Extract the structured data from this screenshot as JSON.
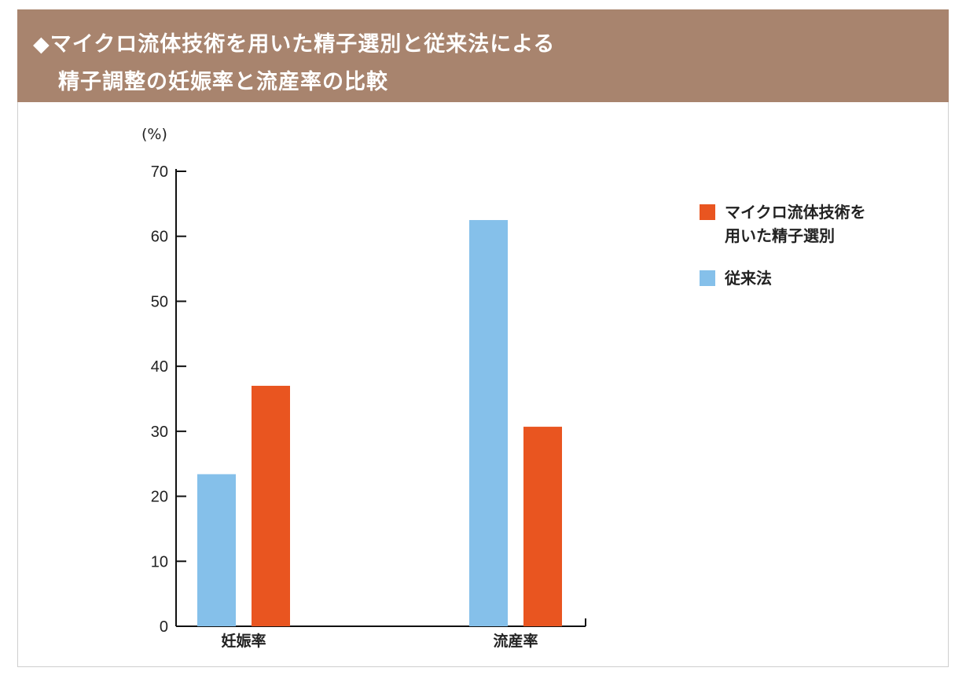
{
  "header": {
    "title_line1": "◆マイクロ流体技術を用いた精子選別と従来法による",
    "title_line2": "精子調整の妊娠率と流産率の比較"
  },
  "chart_data": {
    "type": "bar",
    "title": "マイクロ流体技術を用いた精子選別と従来法による精子調整の妊娠率と流産率の比較",
    "ylabel": "(%)",
    "xlabel": "",
    "ylim": [
      0,
      70
    ],
    "yticks": [
      0,
      10,
      20,
      30,
      40,
      50,
      60,
      70
    ],
    "categories": [
      "妊娠率",
      "流産率"
    ],
    "series": [
      {
        "name": "従来法",
        "color": "#85c0ea",
        "values": [
          23.4,
          62.5
        ]
      },
      {
        "name": "マイクロ流体技術を用いた精子選別",
        "color": "#e95520",
        "values": [
          37.0,
          30.7
        ]
      }
    ],
    "legend": {
      "placement": "right",
      "items": [
        {
          "line1": "マイクロ流体技術を",
          "line2": "用いた精子選別",
          "color": "#e95520"
        },
        {
          "line1": "従来法",
          "line2": "",
          "color": "#85c0ea"
        }
      ]
    },
    "grid": false
  }
}
